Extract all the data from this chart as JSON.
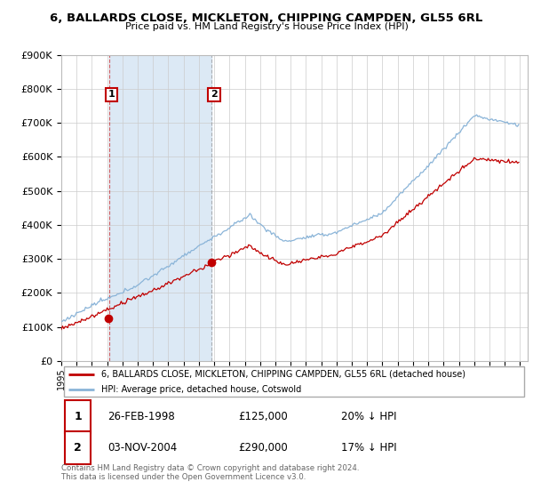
{
  "title": "6, BALLARDS CLOSE, MICKLETON, CHIPPING CAMPDEN, GL55 6RL",
  "subtitle": "Price paid vs. HM Land Registry's House Price Index (HPI)",
  "ylim": [
    0,
    900000
  ],
  "yticks": [
    0,
    100000,
    200000,
    300000,
    400000,
    500000,
    600000,
    700000,
    800000,
    900000
  ],
  "year_start": 1995,
  "year_end": 2025,
  "hpi_color": "#8ab4d8",
  "price_color": "#c00000",
  "shade_color": "#dce9f5",
  "transaction1_year": 1998.122,
  "transaction1_price": 125000,
  "transaction1_pct": "20%",
  "transaction1_date": "26-FEB-1998",
  "transaction2_year": 2004.836,
  "transaction2_price": 290000,
  "transaction2_pct": "17%",
  "transaction2_date": "03-NOV-2004",
  "legend_label_price": "6, BALLARDS CLOSE, MICKLETON, CHIPPING CAMPDEN, GL55 6RL (detached house)",
  "legend_label_hpi": "HPI: Average price, detached house, Cotswold",
  "footer": "Contains HM Land Registry data © Crown copyright and database right 2024.\nThis data is licensed under the Open Government Licence v3.0.",
  "background_color": "#ffffff",
  "grid_color": "#cccccc"
}
